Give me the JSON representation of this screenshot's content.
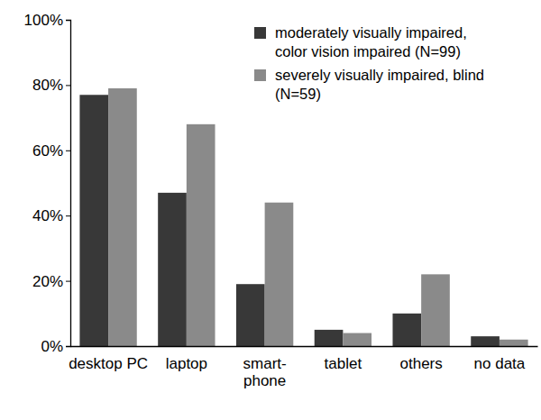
{
  "chart_data": {
    "type": "bar",
    "categories": [
      "desktop PC",
      "laptop",
      "smart-\nphone",
      "tablet",
      "others",
      "no data"
    ],
    "series": [
      {
        "name": "moderately visually impaired,\ncolor vision impaired (N=99)",
        "color": "#383838",
        "values": [
          77,
          47,
          19,
          5,
          10,
          3
        ]
      },
      {
        "name": "severely visually impaired, blind\n(N=59)",
        "color": "#8a8a8a",
        "values": [
          79,
          68,
          44,
          4,
          22,
          2
        ]
      }
    ],
    "ylim": [
      0,
      100
    ],
    "yticks": [
      {
        "value": 0,
        "label": "0%"
      },
      {
        "value": 20,
        "label": "20%"
      },
      {
        "value": 40,
        "label": "40%"
      },
      {
        "value": 60,
        "label": "60%"
      },
      {
        "value": 80,
        "label": "80%"
      },
      {
        "value": 100,
        "label": "100%"
      }
    ],
    "grid": false,
    "legend": "top-right"
  }
}
